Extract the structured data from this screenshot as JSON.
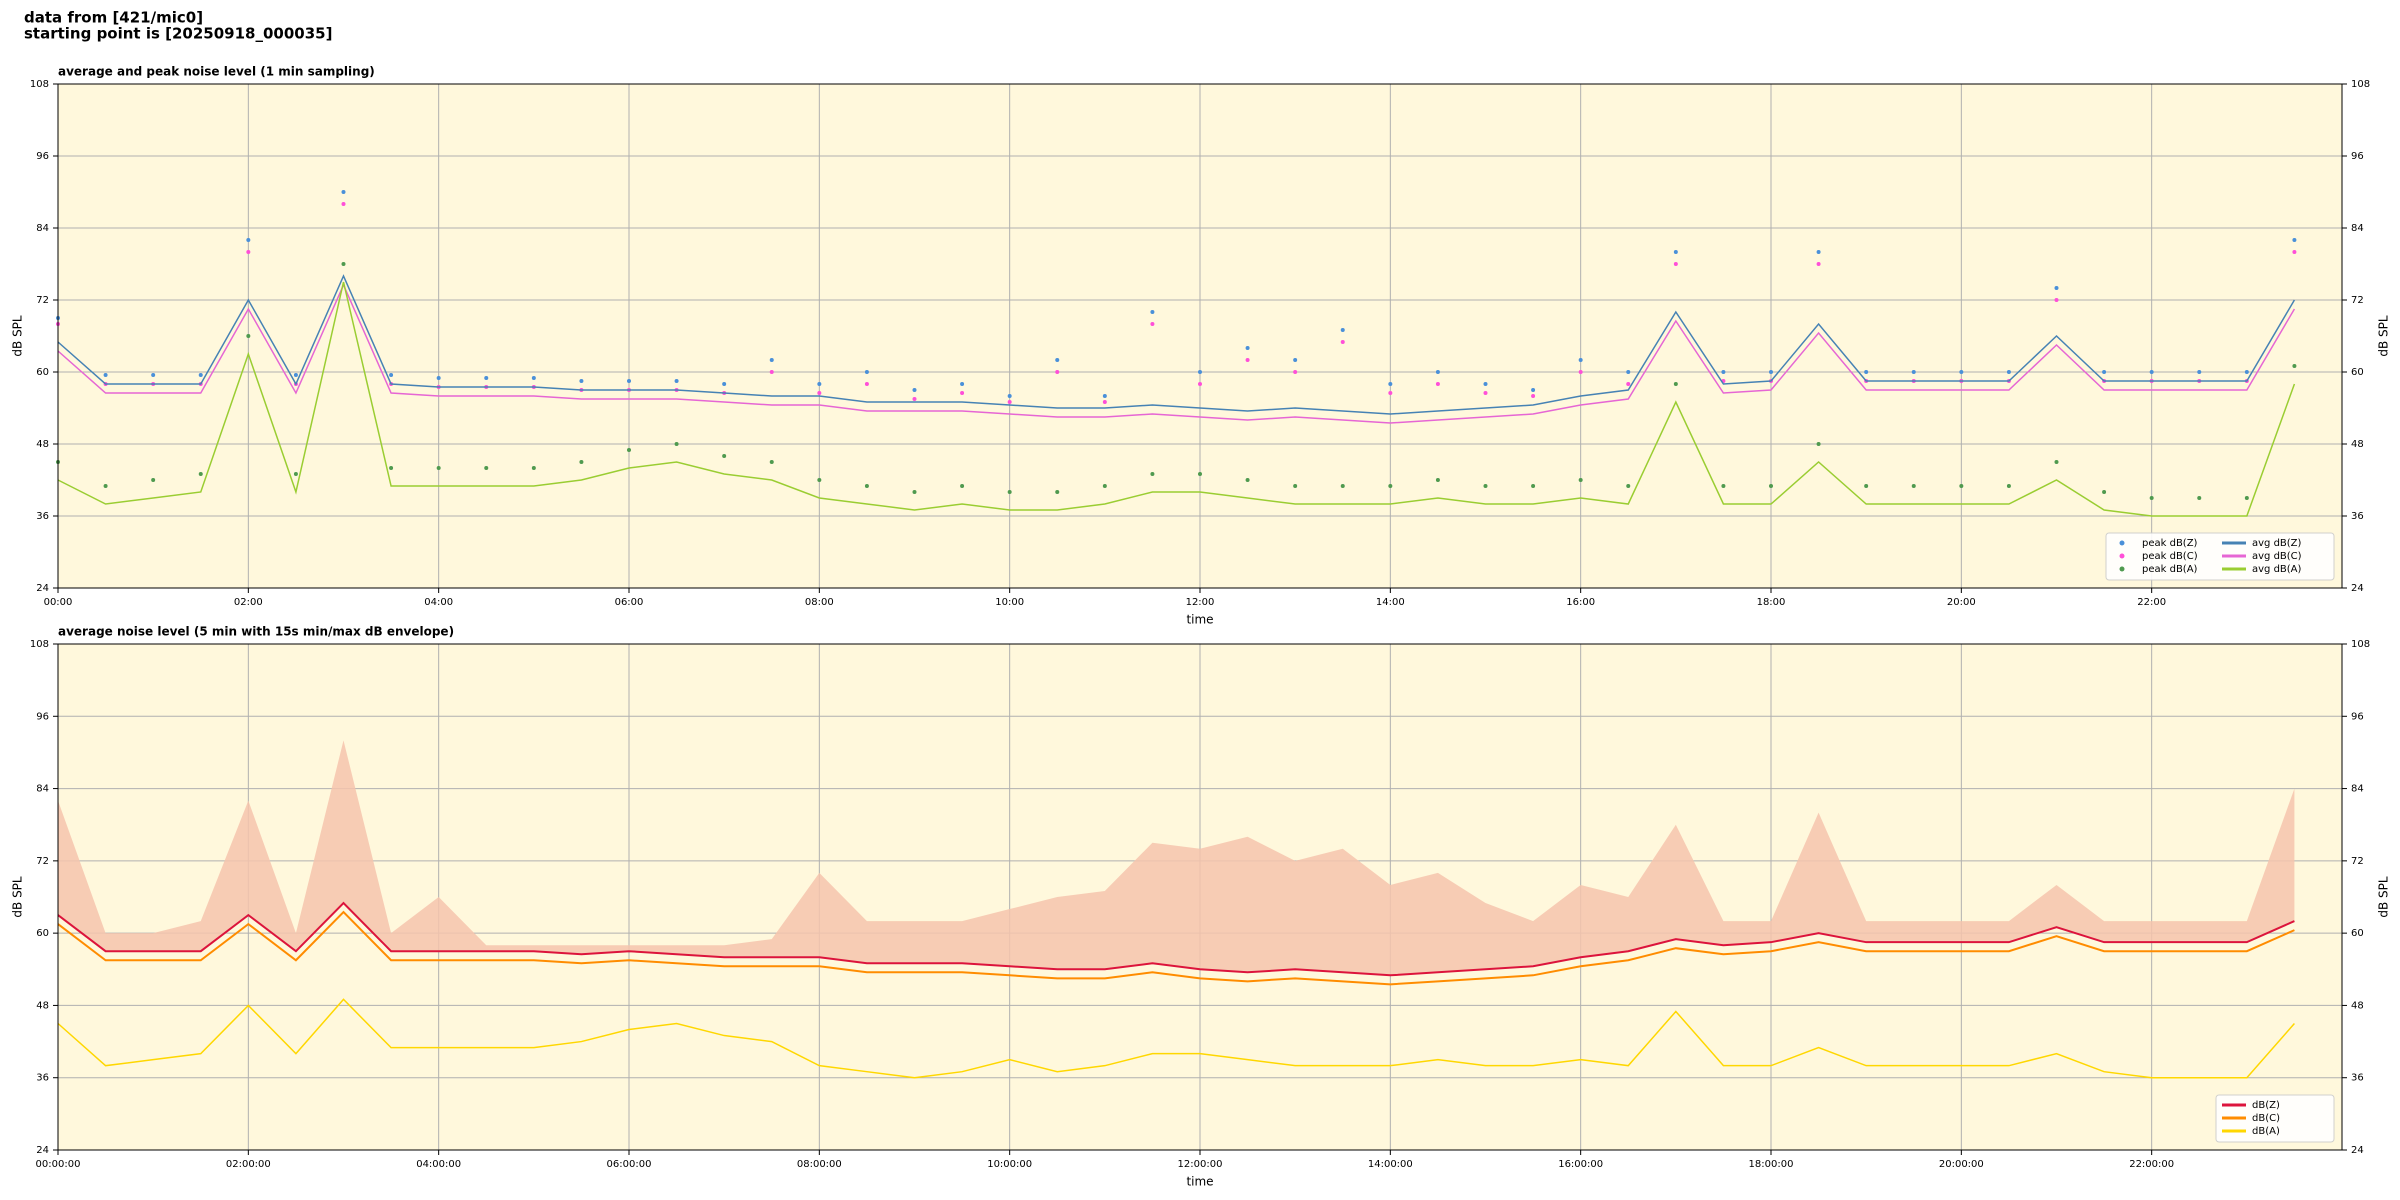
{
  "header": {
    "line1": "data from [421/mic0]",
    "line2": "starting point is [20250918_000035]"
  },
  "chart_data": [
    {
      "type": "line",
      "title": "average and peak noise level (1 min sampling)",
      "xlabel": "time",
      "ylabel": "dB SPL",
      "y2label": "dB SPL",
      "x": [
        0,
        0.5,
        1,
        1.5,
        2,
        2.5,
        3,
        3.5,
        4,
        4.5,
        5,
        5.5,
        6,
        6.5,
        7,
        7.5,
        8,
        8.5,
        9,
        9.5,
        10,
        10.5,
        11,
        11.5,
        12,
        12.5,
        13,
        13.5,
        14,
        14.5,
        15,
        15.5,
        16,
        16.5,
        17,
        17.5,
        18,
        18.5,
        19,
        19.5,
        20,
        20.5,
        21,
        21.5,
        22,
        22.5,
        23,
        23.5
      ],
      "xlim": [
        0,
        24
      ],
      "xticks": [
        {
          "value": 0,
          "label": "00:00"
        },
        {
          "value": 2,
          "label": "02:00"
        },
        {
          "value": 4,
          "label": "04:00"
        },
        {
          "value": 6,
          "label": "06:00"
        },
        {
          "value": 8,
          "label": "08:00"
        },
        {
          "value": 10,
          "label": "10:00"
        },
        {
          "value": 12,
          "label": "12:00"
        },
        {
          "value": 14,
          "label": "14:00"
        },
        {
          "value": 16,
          "label": "16:00"
        },
        {
          "value": 18,
          "label": "18:00"
        },
        {
          "value": 20,
          "label": "20:00"
        },
        {
          "value": 22,
          "label": "22:00"
        }
      ],
      "ylim": [
        24,
        108
      ],
      "yticks": [
        24,
        36,
        48,
        60,
        72,
        84,
        96,
        108
      ],
      "grid": true,
      "legend": "lower right",
      "series": [
        {
          "name": "peak dB(Z)",
          "style": "dots",
          "color": "#4a90d9",
          "values": [
            69,
            59.5,
            59.5,
            59.5,
            82,
            59.5,
            90,
            59.5,
            59,
            59,
            59,
            58.5,
            58.5,
            58.5,
            58,
            62,
            58,
            60,
            57,
            58,
            56,
            62,
            56,
            70,
            60,
            64,
            62,
            67,
            58,
            60,
            58,
            57,
            62,
            60,
            80,
            60,
            60,
            80,
            60,
            60,
            60,
            60,
            74,
            60,
            60,
            60,
            60,
            82
          ]
        },
        {
          "name": "peak dB(C)",
          "style": "dots",
          "color": "#ff4fd8",
          "values": [
            68,
            58,
            58,
            58,
            80,
            58,
            88,
            58,
            57.5,
            57.5,
            57.5,
            57,
            57,
            57,
            56.5,
            60,
            56.5,
            58,
            55.5,
            56.5,
            55,
            60,
            55,
            68,
            58,
            62,
            60,
            65,
            56.5,
            58,
            56.5,
            56,
            60,
            58,
            78,
            58.5,
            58.5,
            78,
            58.5,
            58.5,
            58.5,
            58.5,
            72,
            58.5,
            58.5,
            58.5,
            58.5,
            80
          ]
        },
        {
          "name": "peak dB(A)",
          "style": "dots",
          "color": "#4f9a4f",
          "values": [
            45,
            41,
            42,
            43,
            66,
            43,
            78,
            44,
            44,
            44,
            44,
            45,
            47,
            48,
            46,
            45,
            42,
            41,
            40,
            41,
            40,
            40,
            41,
            43,
            43,
            42,
            41,
            41,
            41,
            42,
            41,
            41,
            42,
            41,
            58,
            41,
            41,
            48,
            41,
            41,
            41,
            41,
            45,
            40,
            39,
            39,
            39,
            61
          ]
        },
        {
          "name": "avg dB(Z)",
          "style": "line",
          "color": "#4682b4",
          "values": [
            65,
            58,
            58,
            58,
            72,
            58,
            76,
            58,
            57.5,
            57.5,
            57.5,
            57,
            57,
            57,
            56.5,
            56,
            56,
            55,
            55,
            55,
            54.5,
            54,
            54,
            54.5,
            54,
            53.5,
            54,
            53.5,
            53,
            53.5,
            54,
            54.5,
            56,
            57,
            70,
            58,
            58.5,
            68,
            58.5,
            58.5,
            58.5,
            58.5,
            66,
            58.5,
            58.5,
            58.5,
            58.5,
            72
          ]
        },
        {
          "name": "avg dB(C)",
          "style": "line",
          "color": "#e666d4",
          "values": [
            63.5,
            56.5,
            56.5,
            56.5,
            70.5,
            56.5,
            74.5,
            56.5,
            56,
            56,
            56,
            55.5,
            55.5,
            55.5,
            55,
            54.5,
            54.5,
            53.5,
            53.5,
            53.5,
            53,
            52.5,
            52.5,
            53,
            52.5,
            52,
            52.5,
            52,
            51.5,
            52,
            52.5,
            53,
            54.5,
            55.5,
            68.5,
            56.5,
            57,
            66.5,
            57,
            57,
            57,
            57,
            64.5,
            57,
            57,
            57,
            57,
            70.5
          ]
        },
        {
          "name": "avg dB(A)",
          "style": "line",
          "color": "#9acd32",
          "values": [
            42,
            38,
            39,
            40,
            63,
            40,
            75,
            41,
            41,
            41,
            41,
            42,
            44,
            45,
            43,
            42,
            39,
            38,
            37,
            38,
            37,
            37,
            38,
            40,
            40,
            39,
            38,
            38,
            38,
            39,
            38,
            38,
            39,
            38,
            55,
            38,
            38,
            45,
            38,
            38,
            38,
            38,
            42,
            37,
            36,
            36,
            36,
            58
          ]
        }
      ]
    },
    {
      "type": "line",
      "title": "average noise level (5 min with 15s min/max dB envelope)",
      "xlabel": "time",
      "ylabel": "dB SPL",
      "y2label": "dB SPL",
      "x": [
        0,
        0.5,
        1,
        1.5,
        2,
        2.5,
        3,
        3.5,
        4,
        4.5,
        5,
        5.5,
        6,
        6.5,
        7,
        7.5,
        8,
        8.5,
        9,
        9.5,
        10,
        10.5,
        11,
        11.5,
        12,
        12.5,
        13,
        13.5,
        14,
        14.5,
        15,
        15.5,
        16,
        16.5,
        17,
        17.5,
        18,
        18.5,
        19,
        19.5,
        20,
        20.5,
        21,
        21.5,
        22,
        22.5,
        23,
        23.5
      ],
      "xlim": [
        0,
        24
      ],
      "xticks": [
        {
          "value": 0,
          "label": "00:00:00"
        },
        {
          "value": 2,
          "label": "02:00:00"
        },
        {
          "value": 4,
          "label": "04:00:00"
        },
        {
          "value": 6,
          "label": "06:00:00"
        },
        {
          "value": 8,
          "label": "08:00:00"
        },
        {
          "value": 10,
          "label": "10:00:00"
        },
        {
          "value": 12,
          "label": "12:00:00"
        },
        {
          "value": 14,
          "label": "14:00:00"
        },
        {
          "value": 16,
          "label": "16:00:00"
        },
        {
          "value": 18,
          "label": "18:00:00"
        },
        {
          "value": 20,
          "label": "20:00:00"
        },
        {
          "value": 22,
          "label": "22:00:00"
        }
      ],
      "ylim": [
        24,
        108
      ],
      "yticks": [
        24,
        36,
        48,
        60,
        72,
        84,
        96,
        108
      ],
      "grid": true,
      "legend": "lower right",
      "series": [
        {
          "name": "dB(Z)",
          "style": "line",
          "color": "#dc143c",
          "envelope_color": "#f6c4ad",
          "values": [
            63,
            57,
            57,
            57,
            63,
            57,
            65,
            57,
            57,
            57,
            57,
            56.5,
            57,
            56.5,
            56,
            56,
            56,
            55,
            55,
            55,
            54.5,
            54,
            54,
            55,
            54,
            53.5,
            54,
            53.5,
            53,
            53.5,
            54,
            54.5,
            56,
            57,
            59,
            58,
            58.5,
            60,
            58.5,
            58.5,
            58.5,
            58.5,
            61,
            58.5,
            58.5,
            58.5,
            58.5,
            62
          ],
          "max": [
            82,
            60,
            60,
            62,
            82,
            60,
            92,
            60,
            66,
            58,
            58,
            58,
            58,
            58,
            58,
            59,
            70,
            62,
            62,
            62,
            64,
            66,
            67,
            75,
            74,
            76,
            72,
            74,
            68,
            70,
            65,
            62,
            68,
            66,
            78,
            62,
            62,
            80,
            62,
            62,
            62,
            62,
            68,
            62,
            62,
            62,
            62,
            84
          ]
        },
        {
          "name": "dB(C)",
          "style": "line",
          "color": "#ff8c00",
          "values": [
            61.5,
            55.5,
            55.5,
            55.5,
            61.5,
            55.5,
            63.5,
            55.5,
            55.5,
            55.5,
            55.5,
            55,
            55.5,
            55,
            54.5,
            54.5,
            54.5,
            53.5,
            53.5,
            53.5,
            53,
            52.5,
            52.5,
            53.5,
            52.5,
            52,
            52.5,
            52,
            51.5,
            52,
            52.5,
            53,
            54.5,
            55.5,
            57.5,
            56.5,
            57,
            58.5,
            57,
            57,
            57,
            57,
            59.5,
            57,
            57,
            57,
            57,
            60.5
          ]
        },
        {
          "name": "dB(A)",
          "style": "line",
          "color": "#ffd700",
          "values": [
            45,
            38,
            39,
            40,
            48,
            40,
            49,
            41,
            41,
            41,
            41,
            42,
            44,
            45,
            43,
            42,
            38,
            37,
            36,
            37,
            39,
            37,
            38,
            40,
            40,
            39,
            38,
            38,
            38,
            39,
            38,
            38,
            39,
            38,
            47,
            38,
            38,
            41,
            38,
            38,
            38,
            38,
            40,
            37,
            36,
            36,
            36,
            45
          ]
        }
      ]
    }
  ]
}
